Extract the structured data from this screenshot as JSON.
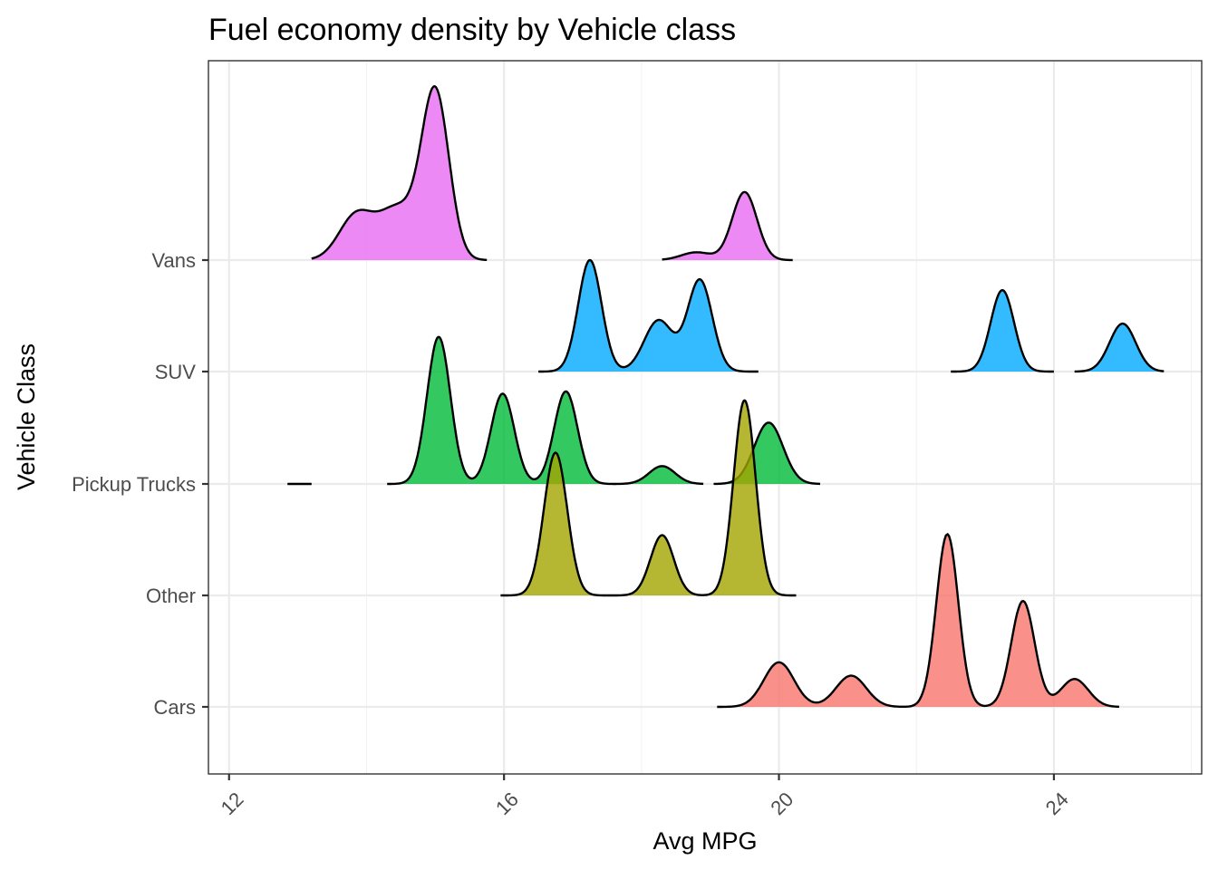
{
  "chart_data": {
    "type": "ridgeline",
    "title": "Fuel economy density by Vehicle class",
    "xlabel": "Avg MPG",
    "ylabel": "Vehicle Class",
    "xlim": [
      11.7,
      26.15
    ],
    "x_ticks": [
      12,
      16,
      20,
      24
    ],
    "x_tick_labels": [
      "12",
      "16",
      "20",
      "24"
    ],
    "categories": [
      "Cars",
      "Other",
      "Pickup Trucks",
      "SUV",
      "Vans"
    ],
    "grid": true,
    "legend": "none",
    "series": [
      {
        "category": "Cars",
        "color": "#F8766D",
        "peaks": [
          {
            "x": 20.0,
            "height": 0.4,
            "sd": 0.22
          },
          {
            "x": 21.05,
            "height": 0.28,
            "sd": 0.22
          },
          {
            "x": 22.45,
            "height": 1.55,
            "sd": 0.16
          },
          {
            "x": 23.55,
            "height": 0.95,
            "sd": 0.17
          },
          {
            "x": 24.3,
            "height": 0.25,
            "sd": 0.2
          }
        ],
        "segments": [
          [
            19.1,
            24.95
          ]
        ]
      },
      {
        "category": "Other",
        "color": "#A3A500",
        "peaks": [
          {
            "x": 16.75,
            "height": 1.28,
            "sd": 0.17
          },
          {
            "x": 18.3,
            "height": 0.54,
            "sd": 0.17
          },
          {
            "x": 19.5,
            "height": 1.75,
            "sd": 0.16
          }
        ],
        "segments": [
          [
            15.95,
            17.5
          ],
          [
            17.5,
            20.25
          ]
        ]
      },
      {
        "category": "Pickup Trucks",
        "color": "#00BA38",
        "peaks": [
          {
            "x": 12.95,
            "height": 0.0,
            "sd": 0.2
          },
          {
            "x": 15.05,
            "height": 1.32,
            "sd": 0.17
          },
          {
            "x": 15.98,
            "height": 0.81,
            "sd": 0.17
          },
          {
            "x": 16.9,
            "height": 0.83,
            "sd": 0.17
          },
          {
            "x": 18.3,
            "height": 0.16,
            "sd": 0.19
          },
          {
            "x": 19.85,
            "height": 0.55,
            "sd": 0.21
          }
        ],
        "segments": [
          [
            12.85,
            13.2
          ],
          [
            14.3,
            18.9
          ],
          [
            19.05,
            20.6
          ]
        ]
      },
      {
        "category": "SUV",
        "color": "#00A9FF",
        "peaks": [
          {
            "x": 17.25,
            "height": 1.0,
            "sd": 0.17
          },
          {
            "x": 18.25,
            "height": 0.46,
            "sd": 0.21
          },
          {
            "x": 18.85,
            "height": 0.82,
            "sd": 0.18
          },
          {
            "x": 23.25,
            "height": 0.73,
            "sd": 0.17
          },
          {
            "x": 25.0,
            "height": 0.43,
            "sd": 0.19
          }
        ],
        "segments": [
          [
            16.5,
            19.7
          ],
          [
            22.5,
            24.0
          ],
          [
            24.3,
            25.6
          ]
        ]
      },
      {
        "category": "Vans",
        "color": "#E76BF3",
        "peaks": [
          {
            "x": 13.85,
            "height": 0.4,
            "sd": 0.25
          },
          {
            "x": 14.45,
            "height": 0.45,
            "sd": 0.27
          },
          {
            "x": 15.0,
            "height": 1.5,
            "sd": 0.2
          },
          {
            "x": 18.8,
            "height": 0.07,
            "sd": 0.22
          },
          {
            "x": 19.5,
            "height": 0.61,
            "sd": 0.18
          }
        ],
        "segments": [
          [
            13.2,
            15.75
          ],
          [
            18.3,
            20.2
          ]
        ]
      }
    ],
    "draw_order": [
      "Vans",
      "SUV",
      "Pickup Trucks",
      "Other",
      "Cars"
    ]
  }
}
